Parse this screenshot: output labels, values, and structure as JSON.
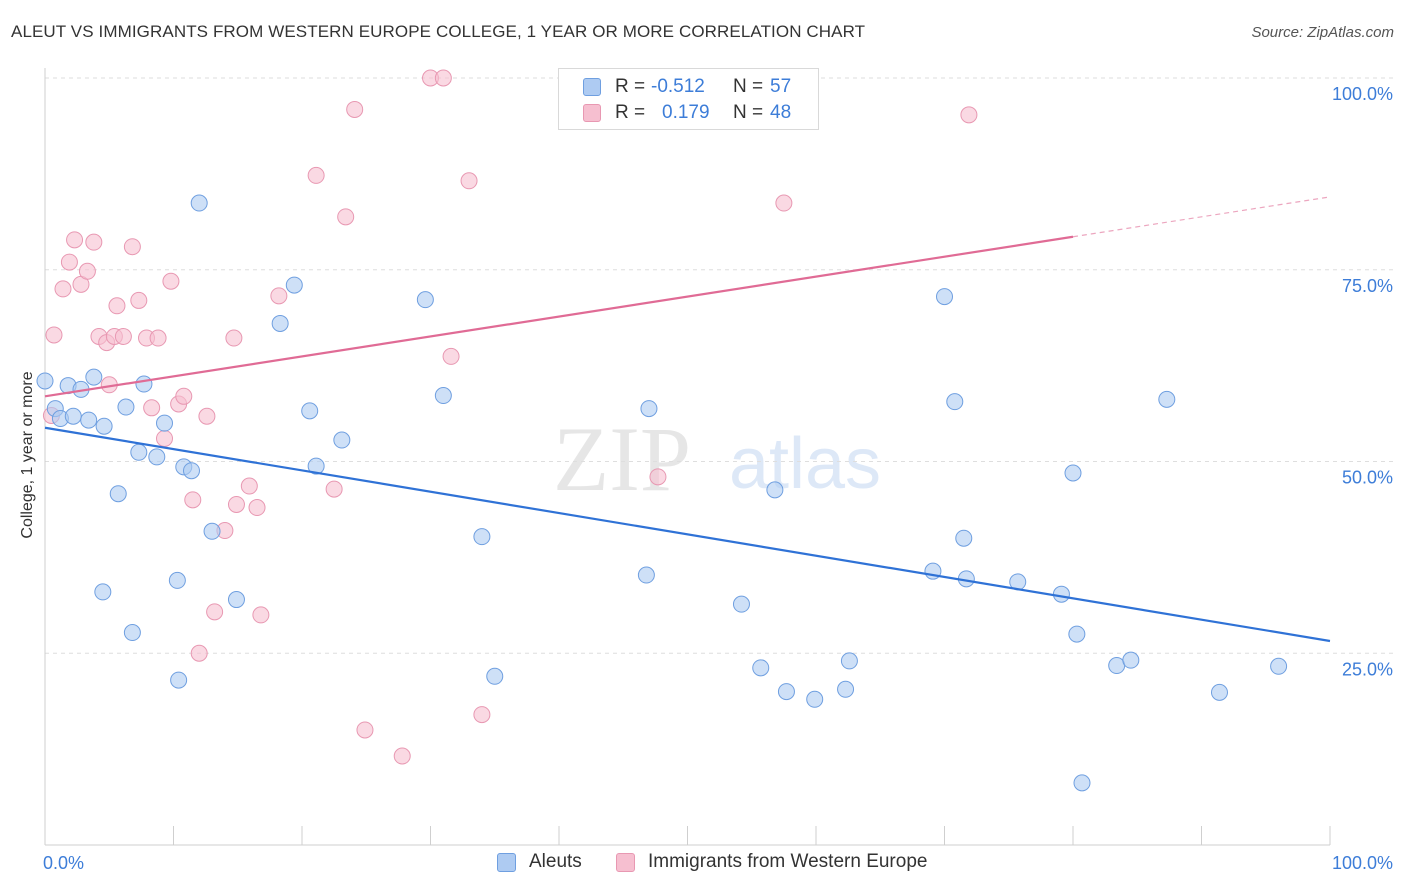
{
  "header": {
    "title": "ALEUT VS IMMIGRANTS FROM WESTERN EUROPE COLLEGE, 1 YEAR OR MORE CORRELATION CHART",
    "source": "Source: ZipAtlas.com"
  },
  "watermark": {
    "zip": "ZIP",
    "atlas": "atlas"
  },
  "stats_legend": {
    "rows": [
      {
        "r_label": "R =",
        "r_value": "-0.512",
        "n_label": "N =",
        "n_value": "57"
      },
      {
        "r_label": "R =",
        "r_value": "0.179",
        "n_label": "N =",
        "n_value": "48"
      }
    ]
  },
  "chart_data": {
    "type": "scatter",
    "title": "ALEUT VS IMMIGRANTS FROM WESTERN EUROPE COLLEGE, 1 YEAR OR MORE CORRELATION CHART",
    "xlabel": "",
    "ylabel": "College, 1 year or more",
    "xlim": [
      0,
      100
    ],
    "ylim": [
      0,
      100
    ],
    "x_tick_labels": [
      "0.0%",
      "100.0%"
    ],
    "y_tick_labels": [
      "25.0%",
      "50.0%",
      "75.0%",
      "100.0%"
    ],
    "y_ticks": [
      25,
      50,
      75,
      100
    ],
    "grid": true,
    "legend_position": "bottom-center",
    "colors": {
      "aleuts_fill": "#aecbf2",
      "aleuts_stroke": "#6f9fe0",
      "aleuts_line": "#2f72d6",
      "immigrants_fill": "#f6bfd0",
      "immigrants_stroke": "#e898b2",
      "immigrants_line": "#e06b95",
      "axis_text": "#3d7dd8"
    },
    "series": [
      {
        "name": "Aleuts",
        "trend": {
          "x0": 0,
          "y0": 54.4,
          "x1": 100,
          "y1": 26.6
        },
        "points": [
          [
            0,
            60.5
          ],
          [
            0.8,
            56.9
          ],
          [
            1.2,
            55.6
          ],
          [
            1.8,
            59.9
          ],
          [
            2.2,
            55.9
          ],
          [
            2.8,
            59.4
          ],
          [
            3.4,
            55.4
          ],
          [
            3.8,
            61.0
          ],
          [
            4.6,
            54.6
          ],
          [
            5.7,
            45.8
          ],
          [
            6.3,
            57.1
          ],
          [
            7.3,
            51.2
          ],
          [
            7.7,
            60.1
          ],
          [
            8.7,
            50.6
          ],
          [
            9.3,
            55.0
          ],
          [
            10.8,
            49.3
          ],
          [
            11.4,
            48.8
          ],
          [
            10.3,
            34.5
          ],
          [
            10.4,
            21.5
          ],
          [
            12.0,
            83.7
          ],
          [
            13.0,
            40.9
          ],
          [
            14.9,
            32.0
          ],
          [
            18.3,
            68.0
          ],
          [
            19.4,
            73.0
          ],
          [
            20.6,
            56.6
          ],
          [
            21.1,
            49.4
          ],
          [
            23.1,
            52.8
          ],
          [
            29.6,
            71.1
          ],
          [
            31.0,
            58.6
          ],
          [
            34.0,
            40.2
          ],
          [
            35.0,
            22.0
          ],
          [
            46.8,
            35.2
          ],
          [
            47.0,
            56.9
          ],
          [
            54.2,
            31.4
          ],
          [
            55.7,
            23.1
          ],
          [
            56.8,
            46.3
          ],
          [
            57.7,
            20.0
          ],
          [
            59.9,
            19.0
          ],
          [
            62.3,
            20.3
          ],
          [
            62.6,
            24.0
          ],
          [
            69.1,
            35.7
          ],
          [
            70.0,
            71.5
          ],
          [
            70.8,
            57.8
          ],
          [
            71.5,
            40.0
          ],
          [
            71.7,
            34.7
          ],
          [
            75.7,
            34.3
          ],
          [
            79.1,
            32.7
          ],
          [
            80.0,
            48.5
          ],
          [
            80.3,
            27.5
          ],
          [
            80.7,
            8.1
          ],
          [
            83.4,
            23.4
          ],
          [
            84.5,
            24.1
          ],
          [
            87.3,
            58.1
          ],
          [
            91.4,
            19.9
          ],
          [
            96.0,
            23.3
          ],
          [
            4.5,
            33.0
          ],
          [
            6.8,
            27.7
          ]
        ]
      },
      {
        "name": "Immigrants from Western Europe",
        "trend": {
          "x0": 0,
          "y0": 58.5,
          "x1": 80,
          "y1": 79.3,
          "dash_to_x": 100,
          "dash_to_y": 84.5
        },
        "points": [
          [
            0.7,
            66.5
          ],
          [
            0.5,
            56.0
          ],
          [
            1.4,
            72.5
          ],
          [
            1.9,
            76.0
          ],
          [
            2.3,
            78.9
          ],
          [
            2.8,
            73.1
          ],
          [
            3.3,
            74.8
          ],
          [
            3.8,
            78.6
          ],
          [
            4.2,
            66.3
          ],
          [
            4.8,
            65.5
          ],
          [
            5.4,
            66.3
          ],
          [
            5.6,
            70.3
          ],
          [
            6.1,
            66.3
          ],
          [
            6.8,
            78.0
          ],
          [
            7.3,
            71.0
          ],
          [
            7.9,
            66.1
          ],
          [
            8.3,
            57.0
          ],
          [
            8.8,
            66.1
          ],
          [
            9.3,
            53.0
          ],
          [
            9.8,
            73.5
          ],
          [
            10.4,
            57.5
          ],
          [
            10.8,
            58.5
          ],
          [
            11.5,
            45.0
          ],
          [
            12.6,
            55.9
          ],
          [
            13.2,
            30.4
          ],
          [
            14.0,
            41.0
          ],
          [
            14.7,
            66.1
          ],
          [
            14.9,
            44.4
          ],
          [
            15.9,
            46.8
          ],
          [
            16.5,
            44.0
          ],
          [
            16.8,
            30.0
          ],
          [
            18.2,
            71.6
          ],
          [
            12.0,
            25.0
          ],
          [
            21.1,
            87.3
          ],
          [
            22.5,
            46.4
          ],
          [
            23.4,
            81.9
          ],
          [
            24.1,
            95.9
          ],
          [
            24.9,
            15.0
          ],
          [
            27.8,
            11.6
          ],
          [
            30.0,
            100.0
          ],
          [
            31.0,
            100.0
          ],
          [
            31.6,
            63.7
          ],
          [
            33.0,
            86.6
          ],
          [
            34.0,
            17.0
          ],
          [
            47.7,
            48.0
          ],
          [
            57.5,
            83.7
          ],
          [
            71.9,
            95.2
          ],
          [
            5.0,
            60.0
          ]
        ]
      }
    ]
  },
  "bottom_legend": {
    "items": [
      {
        "label": "Aleuts"
      },
      {
        "label": "Immigrants from Western Europe"
      }
    ]
  }
}
